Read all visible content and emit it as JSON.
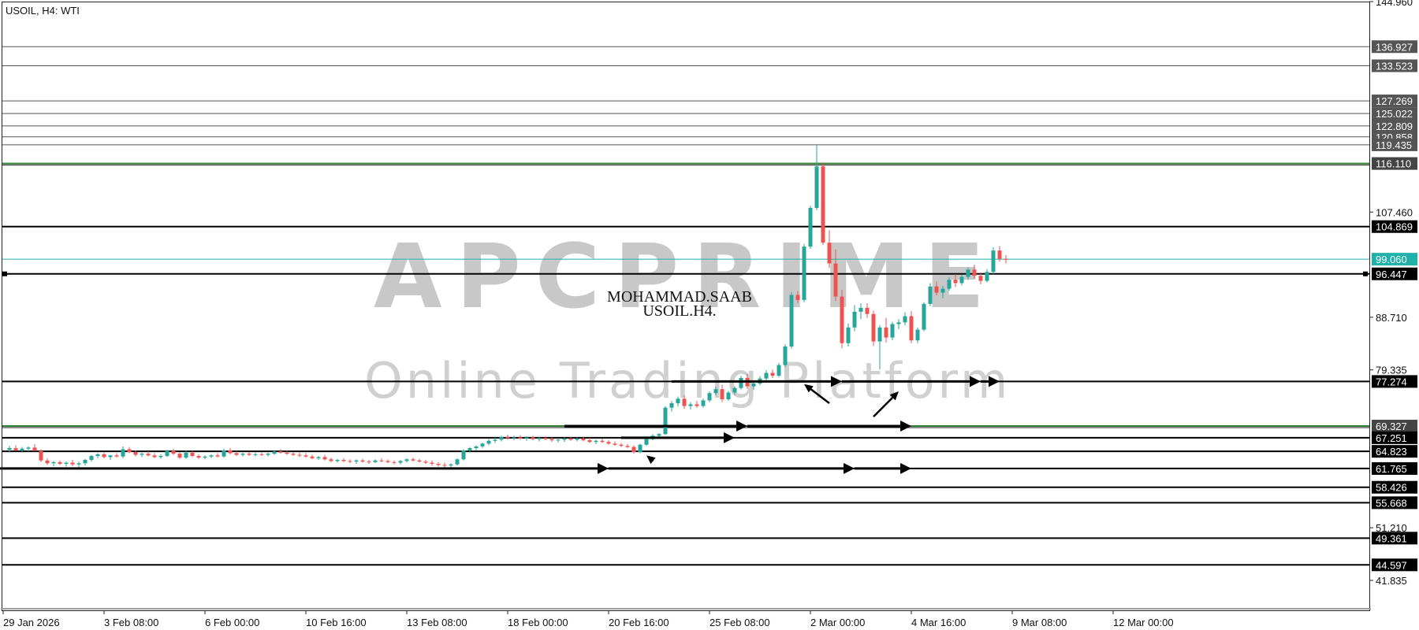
{
  "chart_data": {
    "type": "candlestick",
    "title": "USOIL, H4:  WTI",
    "watermark": {
      "logo": "APCPRIME",
      "subtitle": "Online Trading Platform"
    },
    "note_lines": [
      "MOHAMMAD.SAAB",
      "USOIL.H4."
    ],
    "ylim": [
      36.5,
      144.96
    ],
    "y_ticks": [
      "144.960",
      "107.460",
      "88.710",
      "79.335",
      "51.210",
      "41.835"
    ],
    "x_ticks": [
      "29 Jan 2026",
      "3 Feb 08:00",
      "6 Feb 00:00",
      "10 Feb 16:00",
      "13 Feb 08:00",
      "18 Feb 00:00",
      "20 Feb 16:00",
      "25 Feb 08:00",
      "2 Mar 00:00",
      "4 Mar 16:00",
      "9 Mar 08:00",
      "12 Mar 00:00"
    ],
    "x_tick_positions": [
      0,
      16,
      32,
      48,
      64,
      80,
      96,
      112,
      128,
      144,
      160,
      176
    ],
    "current_price": {
      "value": 99.06,
      "label": "99.060",
      "color": "#20b2aa"
    },
    "levels": [
      {
        "value": 136.927,
        "label": "136.927",
        "color": "#555555"
      },
      {
        "value": 133.523,
        "label": "133.523",
        "color": "#555555"
      },
      {
        "value": 127.269,
        "label": "127.269",
        "color": "#555555"
      },
      {
        "value": 125.022,
        "label": "125.022",
        "color": "#555555"
      },
      {
        "value": 122.809,
        "label": "122.809",
        "color": "#555555"
      },
      {
        "value": 120.858,
        "label": "120.858",
        "color": "#555555"
      },
      {
        "value": 119.435,
        "label": "119.435",
        "color": "#555555"
      },
      {
        "value": 116.11,
        "label": "116.110",
        "color": "#2e7d32"
      },
      {
        "value": 104.869,
        "label": "104.869",
        "color": "#000000"
      },
      {
        "value": 96.447,
        "label": "96.447",
        "color": "#000000"
      },
      {
        "value": 77.274,
        "label": "77.274",
        "color": "#000000"
      },
      {
        "value": 69.327,
        "label": "69.327",
        "color": "#2e7d32"
      },
      {
        "value": 67.251,
        "label": "67.251",
        "color": "#000000"
      },
      {
        "value": 64.823,
        "label": "64.823",
        "color": "#000000"
      },
      {
        "value": 61.765,
        "label": "61.765",
        "color": "#000000"
      },
      {
        "value": 58.426,
        "label": "58.426",
        "color": "#000000"
      },
      {
        "value": 55.668,
        "label": "55.668",
        "color": "#000000"
      },
      {
        "value": 49.361,
        "label": "49.361",
        "color": "#000000"
      },
      {
        "value": 44.597,
        "label": "44.597",
        "color": "#000000"
      }
    ],
    "up_color": "#26a69a",
    "down_color": "#ef5350",
    "candles": [
      [
        0,
        65.1,
        65.8,
        64.7,
        65.4
      ],
      [
        1,
        65.4,
        65.9,
        64.9,
        65.0
      ],
      [
        2,
        65.0,
        65.6,
        64.6,
        65.3
      ],
      [
        3,
        65.3,
        65.7,
        64.8,
        65.5
      ],
      [
        4,
        65.5,
        66.1,
        65.1,
        64.9
      ],
      [
        5,
        64.9,
        65.2,
        62.9,
        63.2
      ],
      [
        6,
        63.2,
        63.6,
        62.4,
        62.7
      ],
      [
        7,
        62.7,
        63.1,
        62.2,
        62.9
      ],
      [
        8,
        62.9,
        63.2,
        62.4,
        62.6
      ],
      [
        9,
        62.6,
        63.0,
        62.1,
        62.8
      ],
      [
        10,
        62.8,
        63.3,
        62.2,
        62.5
      ],
      [
        11,
        62.5,
        63.0,
        61.9,
        62.7
      ],
      [
        12,
        62.7,
        63.5,
        62.3,
        63.3
      ],
      [
        13,
        63.3,
        64.2,
        63.0,
        64.0
      ],
      [
        14,
        64.0,
        64.5,
        63.6,
        64.3
      ],
      [
        15,
        64.3,
        64.6,
        63.6,
        63.8
      ],
      [
        16,
        63.8,
        64.2,
        63.3,
        64.1
      ],
      [
        17,
        64.1,
        64.5,
        63.7,
        63.9
      ],
      [
        18,
        63.9,
        65.7,
        63.6,
        65.2
      ],
      [
        19,
        65.2,
        65.6,
        64.5,
        64.7
      ],
      [
        20,
        64.7,
        65.0,
        63.9,
        64.2
      ],
      [
        21,
        64.2,
        64.6,
        63.8,
        64.4
      ],
      [
        22,
        64.4,
        64.8,
        63.9,
        64.1
      ],
      [
        23,
        64.1,
        64.5,
        63.6,
        63.8
      ],
      [
        24,
        63.8,
        64.3,
        63.5,
        64.0
      ],
      [
        25,
        64.0,
        65.1,
        63.8,
        64.9
      ],
      [
        26,
        64.9,
        65.3,
        64.2,
        64.4
      ],
      [
        27,
        64.4,
        64.7,
        63.5,
        63.7
      ],
      [
        28,
        63.7,
        64.9,
        63.5,
        64.6
      ],
      [
        29,
        64.6,
        64.9,
        63.8,
        64.0
      ],
      [
        30,
        64.0,
        64.3,
        63.5,
        63.7
      ],
      [
        31,
        63.7,
        64.1,
        63.4,
        63.9
      ],
      [
        32,
        63.9,
        64.3,
        63.6,
        64.1
      ],
      [
        33,
        64.1,
        64.5,
        63.7,
        63.9
      ],
      [
        34,
        63.9,
        65.3,
        63.7,
        65.0
      ],
      [
        35,
        65.0,
        65.4,
        64.3,
        64.5
      ],
      [
        36,
        64.5,
        64.8,
        64.0,
        64.2
      ],
      [
        37,
        64.2,
        64.6,
        63.9,
        64.4
      ],
      [
        38,
        64.4,
        64.7,
        64.0,
        64.2
      ],
      [
        39,
        64.2,
        64.6,
        63.9,
        64.3
      ],
      [
        40,
        64.3,
        64.6,
        64.0,
        64.2
      ],
      [
        41,
        64.2,
        64.6,
        63.9,
        64.4
      ],
      [
        42,
        64.4,
        65.0,
        64.2,
        64.8
      ],
      [
        43,
        64.8,
        65.2,
        64.4,
        64.6
      ],
      [
        44,
        64.6,
        64.9,
        64.2,
        64.4
      ],
      [
        45,
        64.4,
        64.7,
        64.0,
        64.2
      ],
      [
        46,
        64.2,
        64.6,
        63.8,
        64.1
      ],
      [
        47,
        64.1,
        64.5,
        63.7,
        63.9
      ],
      [
        48,
        63.9,
        64.2,
        63.4,
        63.6
      ],
      [
        49,
        63.6,
        64.0,
        63.3,
        63.8
      ],
      [
        50,
        63.8,
        64.2,
        63.2,
        63.4
      ],
      [
        51,
        63.4,
        63.7,
        62.9,
        63.1
      ],
      [
        52,
        63.1,
        63.5,
        62.8,
        63.3
      ],
      [
        53,
        63.3,
        63.6,
        62.9,
        63.1
      ],
      [
        54,
        63.1,
        63.4,
        62.7,
        63.0
      ],
      [
        55,
        63.0,
        63.4,
        62.6,
        63.2
      ],
      [
        56,
        63.2,
        63.5,
        62.8,
        63.0
      ],
      [
        57,
        63.0,
        63.3,
        62.6,
        62.9
      ],
      [
        58,
        62.9,
        63.4,
        62.7,
        63.2
      ],
      [
        59,
        63.2,
        63.6,
        62.9,
        63.1
      ],
      [
        60,
        63.1,
        63.4,
        62.7,
        62.9
      ],
      [
        61,
        62.9,
        63.2,
        62.5,
        62.8
      ],
      [
        62,
        62.8,
        63.3,
        62.5,
        63.1
      ],
      [
        63,
        63.1,
        63.6,
        62.8,
        63.4
      ],
      [
        64,
        63.4,
        63.7,
        63.0,
        63.2
      ],
      [
        65,
        63.2,
        63.5,
        62.8,
        63.0
      ],
      [
        66,
        63.0,
        63.3,
        62.6,
        62.8
      ],
      [
        67,
        62.8,
        63.2,
        62.3,
        62.6
      ],
      [
        68,
        62.6,
        62.9,
        62.1,
        62.4
      ],
      [
        69,
        62.4,
        62.8,
        62.0,
        62.3
      ],
      [
        70,
        62.3,
        62.7,
        61.9,
        62.5
      ],
      [
        71,
        62.5,
        63.6,
        62.3,
        63.4
      ],
      [
        72,
        63.4,
        65.2,
        63.2,
        65.0
      ],
      [
        73,
        65.0,
        65.6,
        64.6,
        65.4
      ],
      [
        74,
        65.4,
        65.9,
        65.0,
        65.7
      ],
      [
        75,
        65.7,
        66.4,
        65.4,
        66.2
      ],
      [
        76,
        66.2,
        67.0,
        65.9,
        66.7
      ],
      [
        77,
        66.7,
        67.3,
        66.3,
        66.9
      ],
      [
        78,
        66.9,
        67.6,
        66.6,
        67.4
      ],
      [
        79,
        67.4,
        67.8,
        66.9,
        67.2
      ],
      [
        80,
        67.2,
        67.6,
        66.8,
        67.3
      ],
      [
        81,
        67.3,
        67.7,
        66.9,
        67.1
      ],
      [
        82,
        67.1,
        67.5,
        66.7,
        67.3
      ],
      [
        83,
        67.3,
        67.6,
        66.8,
        67.0
      ],
      [
        84,
        67.0,
        67.4,
        66.6,
        67.2
      ],
      [
        85,
        67.2,
        67.5,
        66.8,
        67.0
      ],
      [
        86,
        67.0,
        67.3,
        66.5,
        66.8
      ],
      [
        87,
        66.8,
        67.2,
        66.4,
        66.9
      ],
      [
        88,
        66.9,
        67.3,
        66.5,
        67.1
      ],
      [
        89,
        67.1,
        67.4,
        66.7,
        66.9
      ],
      [
        90,
        66.9,
        67.3,
        66.6,
        67.1
      ],
      [
        91,
        67.1,
        67.4,
        66.6,
        66.8
      ],
      [
        92,
        66.8,
        67.2,
        66.3,
        66.5
      ],
      [
        93,
        66.5,
        66.9,
        66.1,
        66.7
      ],
      [
        94,
        66.7,
        67.1,
        66.3,
        66.5
      ],
      [
        95,
        66.5,
        66.8,
        66.0,
        66.2
      ],
      [
        96,
        66.2,
        66.6,
        65.8,
        66.0
      ],
      [
        97,
        66.0,
        66.3,
        65.6,
        65.8
      ],
      [
        98,
        65.8,
        66.1,
        65.4,
        65.6
      ],
      [
        99,
        65.6,
        65.9,
        64.4,
        64.7
      ],
      [
        100,
        64.7,
        66.2,
        64.5,
        66.0
      ],
      [
        101,
        66.0,
        67.3,
        65.8,
        67.0
      ],
      [
        102,
        67.0,
        67.9,
        66.8,
        67.6
      ],
      [
        103,
        67.6,
        68.1,
        67.2,
        67.9
      ],
      [
        104,
        67.9,
        72.9,
        67.7,
        72.6
      ],
      [
        105,
        72.6,
        73.8,
        71.9,
        73.4
      ],
      [
        106,
        73.4,
        74.6,
        72.8,
        74.2
      ],
      [
        107,
        74.2,
        74.8,
        72.4,
        72.9
      ],
      [
        108,
        72.9,
        73.6,
        72.3,
        73.2
      ],
      [
        109,
        73.2,
        73.8,
        72.6,
        72.9
      ],
      [
        110,
        72.9,
        74.2,
        72.6,
        73.9
      ],
      [
        111,
        73.9,
        75.5,
        73.6,
        75.2
      ],
      [
        112,
        75.2,
        76.3,
        74.8,
        75.9
      ],
      [
        113,
        75.9,
        76.7,
        73.6,
        74.1
      ],
      [
        114,
        74.1,
        75.6,
        73.8,
        75.3
      ],
      [
        115,
        75.3,
        76.4,
        74.9,
        76.1
      ],
      [
        116,
        76.1,
        78.3,
        75.8,
        77.9
      ],
      [
        117,
        77.9,
        78.6,
        75.9,
        76.4
      ],
      [
        118,
        76.4,
        77.2,
        75.8,
        76.9
      ],
      [
        119,
        76.9,
        78.2,
        76.6,
        77.8
      ],
      [
        120,
        77.8,
        79.3,
        77.4,
        78.8
      ],
      [
        121,
        78.8,
        79.4,
        77.9,
        78.3
      ],
      [
        122,
        78.3,
        80.6,
        78.0,
        80.2
      ],
      [
        123,
        80.2,
        83.9,
        79.8,
        83.5
      ],
      [
        124,
        83.5,
        93.2,
        83.1,
        92.7
      ],
      [
        125,
        92.7,
        93.4,
        91.3,
        91.8
      ],
      [
        126,
        91.8,
        101.8,
        91.4,
        101.3
      ],
      [
        127,
        101.3,
        108.6,
        100.9,
        108.2
      ],
      [
        128,
        108.2,
        119.4,
        107.8,
        115.6
      ],
      [
        129,
        115.6,
        116.3,
        101.6,
        102.0
      ],
      [
        130,
        102.0,
        104.2,
        97.5,
        98.3
      ],
      [
        131,
        98.3,
        100.8,
        91.6,
        92.4
      ],
      [
        132,
        92.4,
        93.6,
        83.2,
        84.1
      ],
      [
        133,
        84.1,
        87.6,
        83.5,
        86.9
      ],
      [
        134,
        86.9,
        90.9,
        86.2,
        89.7
      ],
      [
        135,
        89.7,
        91.2,
        88.4,
        90.4
      ],
      [
        136,
        90.4,
        91.2,
        88.6,
        89.3
      ],
      [
        137,
        89.3,
        89.9,
        83.6,
        84.4
      ],
      [
        138,
        84.4,
        87.3,
        79.4,
        86.9
      ],
      [
        139,
        86.9,
        88.6,
        84.2,
        85.1
      ],
      [
        140,
        85.1,
        87.9,
        84.6,
        87.5
      ],
      [
        141,
        87.5,
        88.4,
        86.6,
        87.8
      ],
      [
        142,
        87.8,
        89.6,
        87.3,
        88.9
      ],
      [
        143,
        88.9,
        89.8,
        84.1,
        84.6
      ],
      [
        144,
        84.6,
        86.9,
        84.1,
        86.5
      ],
      [
        145,
        86.5,
        91.4,
        86.2,
        91.1
      ],
      [
        146,
        91.1,
        94.8,
        90.7,
        94.2
      ],
      [
        147,
        94.2,
        95.1,
        92.6,
        93.1
      ],
      [
        148,
        93.1,
        94.3,
        92.1,
        93.8
      ],
      [
        149,
        93.8,
        95.8,
        93.4,
        95.4
      ],
      [
        150,
        95.4,
        96.4,
        94.1,
        94.8
      ],
      [
        151,
        94.8,
        96.3,
        94.4,
        95.9
      ],
      [
        152,
        95.9,
        97.6,
        95.4,
        97.2
      ],
      [
        153,
        97.2,
        98.1,
        95.6,
        96.1
      ],
      [
        154,
        96.1,
        96.7,
        94.6,
        95.2
      ],
      [
        155,
        95.2,
        97.3,
        94.9,
        96.8
      ],
      [
        156,
        96.8,
        101.2,
        96.4,
        100.6
      ],
      [
        157,
        100.6,
        101.4,
        98.6,
        99.1
      ],
      [
        158,
        99.1,
        99.8,
        98.3,
        99.06
      ]
    ]
  },
  "annotations": {
    "arrows": [
      {
        "x0": -3,
        "x1": 95,
        "price": 61.765
      },
      {
        "x0": 95,
        "x1": 134,
        "price": 61.765
      },
      {
        "x0": 134,
        "x1": 143,
        "price": 61.765
      },
      {
        "x0": 88,
        "x1": 117,
        "price": 69.327
      },
      {
        "x0": 117,
        "x1": 143,
        "price": 69.327
      },
      {
        "x0": 97,
        "x1": 115,
        "price": 67.251
      },
      {
        "x0": 105,
        "x1": 132,
        "price": 77.274
      },
      {
        "x0": 132,
        "x1": 154,
        "price": 77.274
      },
      {
        "x0": 154,
        "x1": 157,
        "price": 77.274
      }
    ],
    "diagonal_arrows": [
      {
        "x0": 130,
        "p0": 73.4,
        "x1": 126,
        "p1": 76.8
      },
      {
        "x0": 137,
        "p0": 71.0,
        "x1": 141,
        "p1": 75.5
      },
      {
        "x0": 102,
        "p0": 63.2,
        "x1": 101,
        "p1": 64.1
      }
    ]
  }
}
